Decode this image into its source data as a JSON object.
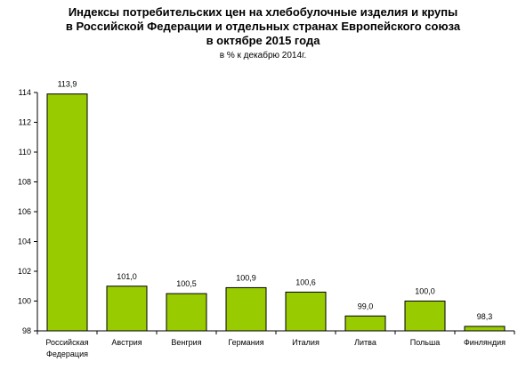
{
  "chart_data": {
    "type": "bar",
    "title_lines": [
      "Индексы потребительских цен на хлебобулочные изделия и крупы",
      "в Российской Федерации и отдельных странах Европейского союза",
      "в октябре 2015 года"
    ],
    "subtitle": "в % к декабрю 2014г.",
    "categories": [
      [
        "Российская",
        "Федерация"
      ],
      [
        "Австрия"
      ],
      [
        "Венгрия"
      ],
      [
        "Германия"
      ],
      [
        "Италия"
      ],
      [
        "Литва"
      ],
      [
        "Польша"
      ],
      [
        "Финляндия"
      ]
    ],
    "values": [
      113.9,
      101.0,
      100.5,
      100.9,
      100.6,
      99.0,
      100.0,
      98.3
    ],
    "value_labels": [
      "113,9",
      "101,0",
      "100,5",
      "100,9",
      "100,6",
      "99,0",
      "100,0",
      "98,3"
    ],
    "ylim": [
      98,
      114
    ],
    "yticks": [
      98,
      100,
      102,
      104,
      106,
      108,
      110,
      112,
      114
    ],
    "xlabel": "",
    "ylabel": "",
    "grid": false,
    "legend": "none",
    "bar_color": "#99CC00"
  }
}
